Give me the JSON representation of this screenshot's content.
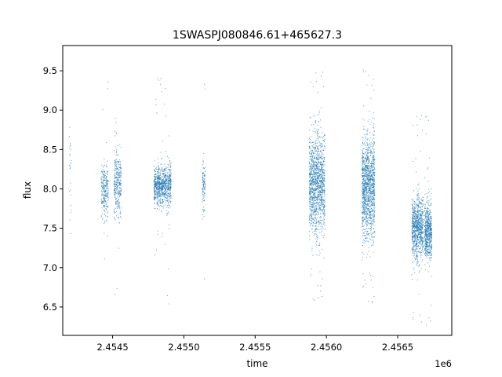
{
  "chart_data": {
    "type": "scatter",
    "title": "1SWASPJ080846.61+465627.3",
    "xlabel": "time",
    "ylabel": "flux",
    "x_offset_label": "1e6",
    "xlim": [
      2454150,
      2456880
    ],
    "ylim": [
      6.14,
      9.82
    ],
    "x_ticks": [
      {
        "value": 2454500,
        "label": "2.4545"
      },
      {
        "value": 2455000,
        "label": "2.4550"
      },
      {
        "value": 2455500,
        "label": "2.4555"
      },
      {
        "value": 2456000,
        "label": "2.4560"
      },
      {
        "value": 2456500,
        "label": "2.4565"
      }
    ],
    "y_ticks": [
      {
        "value": 6.5,
        "label": "6.5"
      },
      {
        "value": 7.0,
        "label": "7.0"
      },
      {
        "value": 7.5,
        "label": "7.5"
      },
      {
        "value": 8.0,
        "label": "8.0"
      },
      {
        "value": 8.5,
        "label": "8.5"
      },
      {
        "value": 9.0,
        "label": "9.0"
      },
      {
        "value": 9.5,
        "label": "9.5"
      }
    ],
    "grid": false,
    "legend": "none",
    "marker_color": "#1f77b4",
    "clusters": [
      {
        "x_start": 2454195,
        "x_end": 2454210,
        "y_center": 8.35,
        "y_spread": 0.35,
        "points": 25
      },
      {
        "x_start": 2454420,
        "x_end": 2454470,
        "y_center": 7.98,
        "y_spread": 0.16,
        "points": 260
      },
      {
        "x_start": 2454510,
        "x_end": 2454560,
        "y_center": 8.05,
        "y_spread": 0.2,
        "points": 320
      },
      {
        "x_start": 2454790,
        "x_end": 2454910,
        "y_center": 8.03,
        "y_spread": 0.13,
        "points": 900
      },
      {
        "x_start": 2455130,
        "x_end": 2455150,
        "y_center": 8.03,
        "y_spread": 0.16,
        "points": 110
      },
      {
        "x_start": 2455880,
        "x_end": 2455990,
        "y_center": 8.05,
        "y_spread": 0.32,
        "points": 1300
      },
      {
        "x_start": 2456250,
        "x_end": 2456340,
        "y_center": 8.02,
        "y_spread": 0.32,
        "points": 1300
      },
      {
        "x_start": 2456600,
        "x_end": 2456680,
        "y_center": 7.5,
        "y_spread": 0.2,
        "points": 850
      },
      {
        "x_start": 2456690,
        "x_end": 2456740,
        "y_center": 7.45,
        "y_spread": 0.18,
        "points": 600
      }
    ]
  }
}
